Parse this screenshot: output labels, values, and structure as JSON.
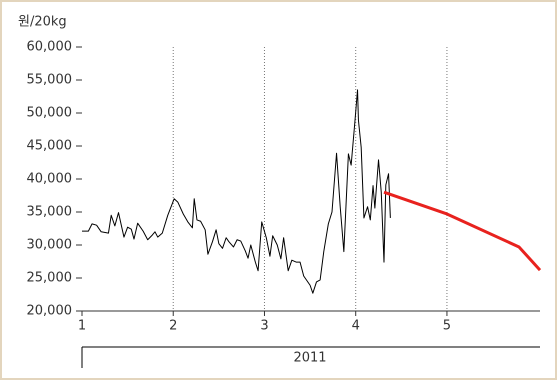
{
  "chart_data": {
    "type": "line",
    "y_label": "원/20kg",
    "x_group_label": "2011",
    "xlim": [
      1,
      6.02
    ],
    "xticks": [
      1,
      2,
      3,
      4,
      5
    ],
    "ylim": [
      20000,
      60000
    ],
    "yticks": [
      {
        "value": 20000,
        "label": "20,000"
      },
      {
        "value": 25000,
        "label": "25,000"
      },
      {
        "value": 30000,
        "label": "30,000"
      },
      {
        "value": 35000,
        "label": "35,000"
      },
      {
        "value": 40000,
        "label": "40,000"
      },
      {
        "value": 45000,
        "label": "45,000"
      },
      {
        "value": 50000,
        "label": "50,000"
      },
      {
        "value": 55000,
        "label": "55,000"
      },
      {
        "value": 60000,
        "label": "60,000"
      }
    ],
    "grid": true,
    "series": [
      {
        "color": "#000000",
        "x": [
          1.0,
          1.07,
          1.11,
          1.16,
          1.21,
          1.29,
          1.32,
          1.36,
          1.4,
          1.46,
          1.5,
          1.54,
          1.57,
          1.61,
          1.67,
          1.72,
          1.77,
          1.8,
          1.83,
          1.88,
          1.94,
          2.01,
          2.05,
          2.11,
          2.16,
          2.21,
          2.23,
          2.26,
          2.3,
          2.35,
          2.38,
          2.43,
          2.47,
          2.5,
          2.54,
          2.58,
          2.61,
          2.66,
          2.7,
          2.74,
          2.79,
          2.82,
          2.85,
          2.9,
          2.93,
          2.97,
          3.02,
          3.06,
          3.09,
          3.14,
          3.18,
          3.21,
          3.26,
          3.3,
          3.35,
          3.39,
          3.43,
          3.5,
          3.53,
          3.57,
          3.61,
          3.65,
          3.7,
          3.74,
          3.79,
          3.83,
          3.87,
          3.92,
          3.95,
          3.99,
          4.02,
          4.03,
          4.06,
          4.09,
          4.13,
          4.16,
          4.19,
          4.21,
          4.25,
          4.28,
          4.31,
          4.33,
          4.36,
          4.38
        ],
        "values": [
          32100,
          32100,
          33200,
          33000,
          32000,
          31800,
          34500,
          32900,
          34900,
          31200,
          32700,
          32400,
          30900,
          33300,
          32100,
          30800,
          31500,
          32000,
          31200,
          31800,
          34500,
          37000,
          36500,
          34700,
          33500,
          32600,
          37000,
          33800,
          33600,
          32300,
          28600,
          30500,
          32300,
          30200,
          29500,
          31100,
          30500,
          29700,
          30800,
          30600,
          29100,
          28000,
          30000,
          27400,
          26100,
          33500,
          31100,
          28300,
          31400,
          30000,
          27900,
          31100,
          26100,
          27700,
          27400,
          27400,
          25300,
          23900,
          22700,
          24400,
          24700,
          29000,
          33200,
          35000,
          43900,
          35800,
          29000,
          43800,
          42100,
          48500,
          53500,
          48900,
          44800,
          34100,
          35800,
          33800,
          39000,
          35600,
          42900,
          38000,
          27400,
          39100,
          40800,
          34100
        ]
      },
      {
        "color": "#e8221e",
        "x": [
          4.31,
          5.0,
          5.79,
          6.02
        ],
        "values": [
          38000,
          34700,
          29700,
          26200
        ]
      }
    ]
  }
}
